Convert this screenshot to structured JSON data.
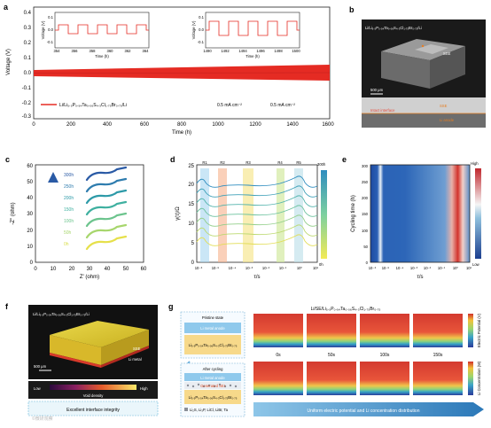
{
  "panels": {
    "a": {
      "label": "a",
      "ylabel": "Voltage (V)",
      "xlabel": "Time (h)",
      "xticks": [
        "0",
        "200",
        "400",
        "600",
        "800",
        "1000",
        "1200",
        "1400",
        "1600"
      ],
      "yticks": [
        "0.4",
        "0.3",
        "0.2",
        "0.1",
        "0.0",
        "-0.1",
        "-0.2",
        "-0.3"
      ],
      "legend": "Li/Li₅.₅P₀.₉₄Ta₀.₀₆S₄.₃Cl₁.₇₅Br₀.₇₅/Li",
      "current_density_1": "0.5 mA cm⁻²",
      "current_density_2": "0.5 mA cm⁻²",
      "inset1": {
        "ylabel": "Voltage (V)",
        "xlabel": "Time (h)",
        "xticks": [
          "354",
          "356",
          "358",
          "360",
          "362",
          "364"
        ],
        "yticks": [
          "0.1",
          "0.0",
          "-0.1"
        ]
      },
      "inset2": {
        "ylabel": "Voltage (V)",
        "xlabel": "Time (h)",
        "xticks": [
          "1490",
          "1492",
          "1494",
          "1496",
          "1498",
          "1500"
        ],
        "yticks": [
          "0.1",
          "0.0",
          "-0.1"
        ]
      }
    },
    "b": {
      "label": "b",
      "title": "Li/Li₅.₅P₀.₉₄Ta₀.₀₆S₄.₃Cl₁.₇₅Br₀.₇₅/Li",
      "scale": "500 μm",
      "sse": "SSE",
      "interface": "Intact interface",
      "anode": "Li anode"
    },
    "c": {
      "label": "c",
      "ylabel": "-Z'' (ohm)",
      "xlabel": "Z' (ohm)",
      "xticks": [
        "0",
        "10",
        "20",
        "30",
        "40",
        "50",
        "60"
      ],
      "yticks": [
        "0",
        "10",
        "20",
        "30",
        "40",
        "50",
        "60"
      ],
      "series_labels": [
        "300h",
        "250h",
        "200h",
        "150h",
        "100h",
        "50h",
        "0h"
      ]
    },
    "d": {
      "label": "d",
      "ylabel": "γ(τ)/Ω",
      "xlabel": "τ/s",
      "xticks": [
        "10⁻⁶",
        "10⁻⁵",
        "10⁻⁴",
        "10⁻³",
        "10⁻²",
        "10⁻¹",
        "10⁰",
        "10¹"
      ],
      "yticks": [
        "0",
        "5",
        "10",
        "15",
        "20",
        "25"
      ],
      "regions": [
        "R1",
        "R2",
        "R3",
        "R4",
        "R5"
      ],
      "colorbar_top": "300h",
      "colorbar_bottom": "0h"
    },
    "e": {
      "label": "e",
      "ylabel": "Cycling time (h)",
      "xlabel": "τ/s",
      "yticks": [
        "0",
        "50",
        "100",
        "150",
        "200",
        "250",
        "300"
      ],
      "xticks": [
        "10⁻⁶",
        "10⁻⁵",
        "10⁻⁴",
        "10⁻³",
        "10⁻²",
        "10⁻¹",
        "10⁰",
        "10¹"
      ],
      "cb_high": "High",
      "cb_low": "Low"
    },
    "f": {
      "label": "f",
      "title": "Li/Li₅.₅P₀.₉₄Ta₀.₀₆S₄.₃Cl₁.₇₅Br₀.₇₅/Li",
      "scale": "500 μm",
      "sse": "SSE",
      "li_metal": "Li metal",
      "cb_low": "Low",
      "cb_high": "High",
      "cb_caption": "Void density",
      "caption": "Excellent interface integrity"
    },
    "g": {
      "label": "g",
      "title": "Li/SE/Li₅.₅P₀.₉₄Ta₀.₀₆S₄.₃Cl₁.₇₅Br₀.₇₅",
      "pristine": "Pristine state",
      "pristine_li": "Li metal anode",
      "pristine_sse": "Li₅.₅P₀.₉₄Ta₀.₀₆S₄.₃Cl₁.₇₅Br₀.₇₅",
      "after": "After cycling",
      "after_li": "Li metal anode",
      "after_sei": "Generated SEI",
      "after_sse": "Li₅.₅P₀.₉₄Ta₀.₀₆S₄.₃Cl₁.₇₅Br₀.₇₅",
      "legend_text": "Li₂S, Li₃P, LiCl, LiBr, Ta",
      "times": [
        "0s",
        "50s",
        "100s",
        "150s"
      ],
      "cb1": "Electric Potential (V)",
      "cb2": "Li Concentration (M)",
      "arrow_text": "Uniform electric potential and Li concentration distribution"
    }
  },
  "watermark": "©微研观察"
}
